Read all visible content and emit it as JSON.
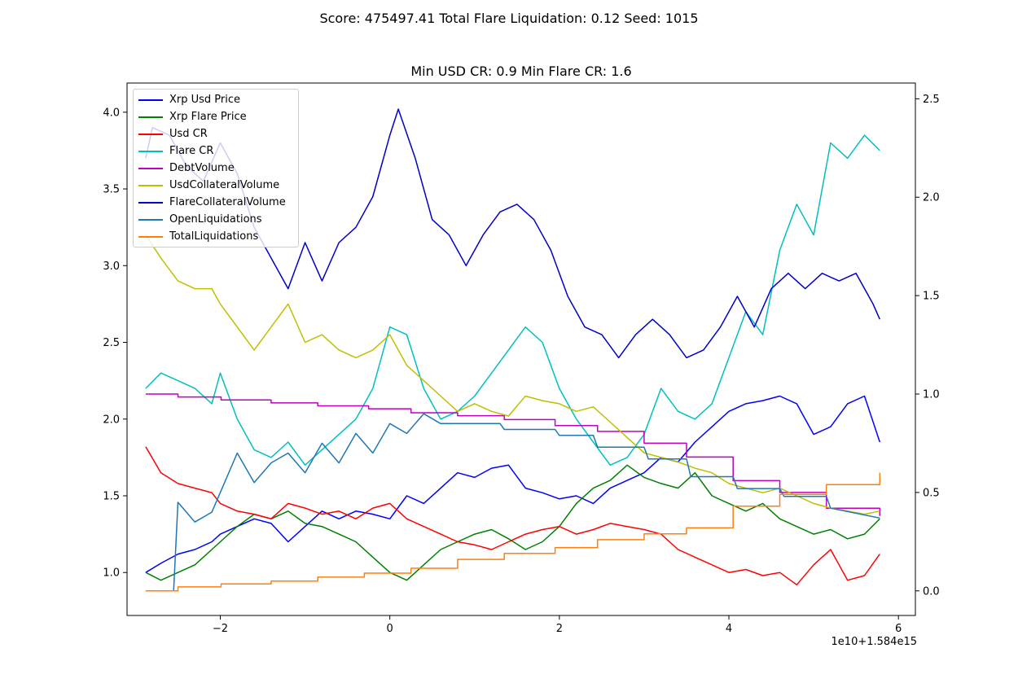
{
  "suptitle": "Score: 475497.41 Total Flare Liquidation: 0.12 Seed: 1015",
  "axes_title": "Min USD CR: 0.9 Min Flare CR: 1.6",
  "x_offset_label": "1e10+1.584e15",
  "chart_data": {
    "type": "line",
    "title": "Min USD CR: 0.9 Min Flare CR: 1.6",
    "grid": false,
    "legend_position": "top-left",
    "x_axis": {
      "xlim": [
        -3.1,
        6.2
      ],
      "ticks": [
        -2,
        0,
        2,
        4,
        6
      ],
      "tick_labels": [
        "−2",
        "0",
        "2",
        "4",
        "6"
      ],
      "offset": "1e10+1.584e15"
    },
    "y_left": {
      "ylim": [
        0.72,
        4.19
      ],
      "ticks": [
        1.0,
        1.5,
        2.0,
        2.5,
        3.0,
        3.5,
        4.0
      ],
      "tick_labels": [
        "1.0",
        "1.5",
        "2.0",
        "2.5",
        "3.0",
        "3.5",
        "4.0"
      ]
    },
    "y_right": {
      "ylim": [
        -0.125,
        2.58
      ],
      "ticks": [
        0.0,
        0.5,
        1.0,
        1.5,
        2.0,
        2.5
      ],
      "tick_labels": [
        "0.0",
        "0.5",
        "1.0",
        "1.5",
        "2.0",
        "2.5"
      ]
    },
    "series": [
      {
        "name": "Xrp Usd Price",
        "color": "#0000ff",
        "axis": "left",
        "x": [
          -2.88,
          -2.7,
          -2.5,
          -2.3,
          -2.1,
          -2.0,
          -1.8,
          -1.6,
          -1.4,
          -1.2,
          -1.0,
          -0.8,
          -0.6,
          -0.4,
          -0.2,
          0.0,
          0.2,
          0.4,
          0.6,
          0.8,
          1.0,
          1.2,
          1.4,
          1.6,
          1.8,
          2.0,
          2.2,
          2.4,
          2.6,
          2.8,
          3.0,
          3.2,
          3.4,
          3.6,
          3.8,
          4.0,
          4.2,
          4.4,
          4.6,
          4.8,
          5.0,
          5.2,
          5.4,
          5.6,
          5.78
        ],
        "y": [
          1.0,
          1.06,
          1.12,
          1.15,
          1.2,
          1.25,
          1.3,
          1.35,
          1.32,
          1.2,
          1.3,
          1.4,
          1.35,
          1.4,
          1.38,
          1.35,
          1.5,
          1.45,
          1.55,
          1.65,
          1.62,
          1.68,
          1.7,
          1.55,
          1.52,
          1.48,
          1.5,
          1.45,
          1.55,
          1.6,
          1.65,
          1.75,
          1.72,
          1.85,
          1.95,
          2.05,
          2.1,
          2.12,
          2.15,
          2.1,
          1.9,
          1.95,
          2.1,
          2.15,
          1.85
        ]
      },
      {
        "name": "Xrp Flare Price",
        "color": "#008000",
        "axis": "left",
        "x": [
          -2.88,
          -2.7,
          -2.5,
          -2.3,
          -2.1,
          -2.0,
          -1.8,
          -1.6,
          -1.4,
          -1.2,
          -1.0,
          -0.8,
          -0.6,
          -0.4,
          -0.2,
          0.0,
          0.2,
          0.4,
          0.6,
          0.8,
          1.0,
          1.2,
          1.4,
          1.6,
          1.8,
          2.0,
          2.2,
          2.4,
          2.6,
          2.8,
          3.0,
          3.2,
          3.4,
          3.6,
          3.8,
          4.0,
          4.2,
          4.4,
          4.6,
          4.8,
          5.0,
          5.2,
          5.4,
          5.6,
          5.78
        ],
        "y": [
          1.0,
          0.95,
          1.0,
          1.05,
          1.15,
          1.2,
          1.3,
          1.38,
          1.35,
          1.4,
          1.32,
          1.3,
          1.25,
          1.2,
          1.1,
          1.0,
          0.95,
          1.05,
          1.15,
          1.2,
          1.25,
          1.28,
          1.22,
          1.15,
          1.2,
          1.3,
          1.45,
          1.55,
          1.6,
          1.7,
          1.62,
          1.58,
          1.55,
          1.65,
          1.5,
          1.45,
          1.4,
          1.45,
          1.35,
          1.3,
          1.25,
          1.28,
          1.22,
          1.25,
          1.35
        ]
      },
      {
        "name": "Usd CR",
        "color": "#ff0000",
        "axis": "left",
        "x": [
          -2.88,
          -2.7,
          -2.5,
          -2.3,
          -2.1,
          -2.0,
          -1.8,
          -1.6,
          -1.4,
          -1.2,
          -1.0,
          -0.8,
          -0.6,
          -0.4,
          -0.2,
          0.0,
          0.2,
          0.4,
          0.6,
          0.8,
          1.0,
          1.2,
          1.4,
          1.6,
          1.8,
          2.0,
          2.2,
          2.4,
          2.6,
          2.8,
          3.0,
          3.2,
          3.4,
          3.6,
          3.8,
          4.0,
          4.2,
          4.4,
          4.6,
          4.8,
          5.0,
          5.2,
          5.4,
          5.6,
          5.78
        ],
        "y": [
          1.82,
          1.65,
          1.58,
          1.55,
          1.52,
          1.45,
          1.4,
          1.38,
          1.35,
          1.45,
          1.42,
          1.38,
          1.4,
          1.35,
          1.42,
          1.45,
          1.35,
          1.3,
          1.25,
          1.2,
          1.18,
          1.15,
          1.2,
          1.25,
          1.28,
          1.3,
          1.25,
          1.28,
          1.32,
          1.3,
          1.28,
          1.25,
          1.15,
          1.1,
          1.05,
          1.0,
          1.02,
          0.98,
          1.0,
          0.92,
          1.05,
          1.15,
          0.95,
          0.98,
          1.12
        ]
      },
      {
        "name": "Flare CR",
        "color": "#00bfbf",
        "axis": "left",
        "x": [
          -2.88,
          -2.7,
          -2.5,
          -2.3,
          -2.1,
          -2.0,
          -1.8,
          -1.6,
          -1.4,
          -1.2,
          -1.0,
          -0.8,
          -0.6,
          -0.4,
          -0.2,
          0.0,
          0.2,
          0.4,
          0.6,
          0.8,
          1.0,
          1.2,
          1.4,
          1.6,
          1.8,
          2.0,
          2.2,
          2.4,
          2.6,
          2.8,
          3.0,
          3.2,
          3.4,
          3.6,
          3.8,
          4.0,
          4.2,
          4.4,
          4.6,
          4.8,
          5.0,
          5.2,
          5.4,
          5.6,
          5.78
        ],
        "y": [
          2.2,
          2.3,
          2.25,
          2.2,
          2.1,
          2.3,
          2.0,
          1.8,
          1.75,
          1.85,
          1.7,
          1.8,
          1.9,
          2.0,
          2.2,
          2.6,
          2.55,
          2.2,
          2.0,
          2.05,
          2.15,
          2.3,
          2.45,
          2.6,
          2.5,
          2.2,
          2.0,
          1.85,
          1.7,
          1.75,
          1.9,
          2.2,
          2.05,
          2.0,
          2.1,
          2.4,
          2.7,
          2.55,
          3.1,
          3.4,
          3.2,
          3.8,
          3.7,
          3.85,
          3.75
        ]
      },
      {
        "name": "DebtVolume",
        "color": "#bf00bf",
        "axis": "right",
        "step": true,
        "x": [
          -2.88,
          -2.5,
          -1.99,
          -1.4,
          -0.85,
          -0.25,
          0.25,
          0.8,
          1.35,
          1.95,
          2.45,
          3.0,
          3.5,
          4.05,
          4.6,
          5.15,
          5.78
        ],
        "y": [
          1.0,
          0.985,
          0.97,
          0.955,
          0.94,
          0.925,
          0.905,
          0.89,
          0.87,
          0.84,
          0.81,
          0.75,
          0.68,
          0.56,
          0.5,
          0.42,
          0.38
        ]
      },
      {
        "name": "UsdCollateralVolume",
        "color": "#bfbf00",
        "axis": "left",
        "x": [
          -2.88,
          -2.7,
          -2.5,
          -2.3,
          -2.1,
          -2.0,
          -1.8,
          -1.6,
          -1.4,
          -1.2,
          -1.0,
          -0.8,
          -0.6,
          -0.4,
          -0.2,
          0.0,
          0.2,
          0.4,
          0.6,
          0.8,
          1.0,
          1.2,
          1.4,
          1.6,
          1.8,
          2.0,
          2.2,
          2.4,
          2.6,
          2.8,
          3.0,
          3.2,
          3.4,
          3.6,
          3.8,
          4.0,
          4.2,
          4.4,
          4.6,
          4.8,
          5.0,
          5.2,
          5.4,
          5.6,
          5.78
        ],
        "y": [
          3.2,
          3.05,
          2.9,
          2.85,
          2.85,
          2.75,
          2.6,
          2.45,
          2.6,
          2.75,
          2.5,
          2.55,
          2.45,
          2.4,
          2.45,
          2.55,
          2.35,
          2.25,
          2.15,
          2.05,
          2.1,
          2.05,
          2.02,
          2.15,
          2.12,
          2.1,
          2.05,
          2.08,
          1.98,
          1.88,
          1.78,
          1.75,
          1.72,
          1.68,
          1.65,
          1.58,
          1.55,
          1.52,
          1.55,
          1.5,
          1.45,
          1.42,
          1.4,
          1.38,
          1.4
        ]
      },
      {
        "name": "FlareCollateralVolume",
        "color": "#0000c8",
        "axis": "left",
        "x": [
          -2.88,
          -2.8,
          -2.6,
          -2.4,
          -2.2,
          -2.0,
          -1.8,
          -1.6,
          -1.4,
          -1.2,
          -1.0,
          -0.8,
          -0.6,
          -0.4,
          -0.2,
          0.0,
          0.1,
          0.3,
          0.5,
          0.7,
          0.9,
          1.1,
          1.3,
          1.5,
          1.7,
          1.9,
          2.1,
          2.3,
          2.5,
          2.7,
          2.9,
          3.1,
          3.3,
          3.5,
          3.7,
          3.9,
          4.1,
          4.3,
          4.5,
          4.7,
          4.9,
          5.1,
          5.3,
          5.5,
          5.7,
          5.78
        ],
        "y": [
          3.7,
          3.9,
          3.85,
          3.65,
          3.55,
          3.8,
          3.6,
          3.25,
          3.05,
          2.85,
          3.15,
          2.9,
          3.15,
          3.25,
          3.45,
          3.85,
          4.02,
          3.7,
          3.3,
          3.2,
          3.0,
          3.2,
          3.35,
          3.4,
          3.3,
          3.1,
          2.8,
          2.6,
          2.55,
          2.4,
          2.55,
          2.65,
          2.55,
          2.4,
          2.45,
          2.6,
          2.8,
          2.6,
          2.85,
          2.95,
          2.85,
          2.95,
          2.9,
          2.95,
          2.75,
          2.65
        ]
      },
      {
        "name": "OpenLiquidations",
        "color": "#1f77b4",
        "axis": "right",
        "x": [
          -2.88,
          -2.55,
          -2.5,
          -2.3,
          -2.1,
          -2.0,
          -1.8,
          -1.6,
          -1.4,
          -1.2,
          -1.0,
          -0.8,
          -0.6,
          -0.4,
          -0.2,
          0.0,
          0.2,
          0.4,
          0.6,
          0.8,
          1.3,
          1.35,
          1.95,
          2.0,
          2.4,
          2.45,
          3.0,
          3.05,
          3.5,
          3.55,
          4.05,
          4.1,
          4.6,
          4.65,
          5.15,
          5.2,
          5.78
        ],
        "y": [
          0.0,
          0.0,
          0.45,
          0.35,
          0.4,
          0.5,
          0.7,
          0.55,
          0.65,
          0.7,
          0.6,
          0.75,
          0.65,
          0.8,
          0.7,
          0.85,
          0.8,
          0.9,
          0.85,
          0.85,
          0.85,
          0.82,
          0.82,
          0.79,
          0.79,
          0.73,
          0.73,
          0.67,
          0.67,
          0.58,
          0.58,
          0.52,
          0.52,
          0.48,
          0.48,
          0.42,
          0.37
        ]
      },
      {
        "name": "TotalLiquidations",
        "color": "#ff7f0e",
        "axis": "right",
        "step": true,
        "x": [
          -2.88,
          -2.5,
          -1.99,
          -1.4,
          -0.85,
          -0.3,
          0.25,
          0.8,
          1.35,
          1.95,
          2.45,
          3.0,
          3.5,
          4.05,
          4.6,
          5.15,
          5.78
        ],
        "y": [
          0.0,
          0.02,
          0.035,
          0.05,
          0.07,
          0.09,
          0.115,
          0.16,
          0.19,
          0.22,
          0.26,
          0.29,
          0.32,
          0.43,
          0.49,
          0.54,
          0.6
        ]
      }
    ]
  }
}
